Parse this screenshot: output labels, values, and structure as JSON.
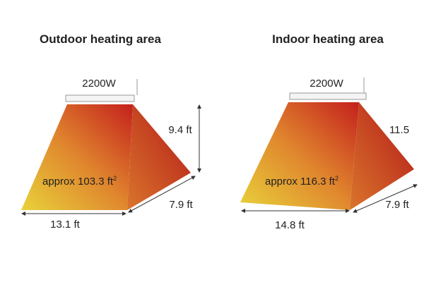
{
  "panels": [
    {
      "title": "Outdoor heating area",
      "power": "2200W",
      "height": "9.4 ft",
      "area": "approx 103.3 ft",
      "area_unit_power": "2",
      "width": "13.1 ft",
      "depth": "7.9 ft"
    },
    {
      "title": "Indoor heating area",
      "power": "2200W",
      "height": "11.5",
      "area": "approx 116.3 ft",
      "area_unit_power": "2",
      "width": "14.8 ft",
      "depth": "7.9 ft"
    }
  ]
}
